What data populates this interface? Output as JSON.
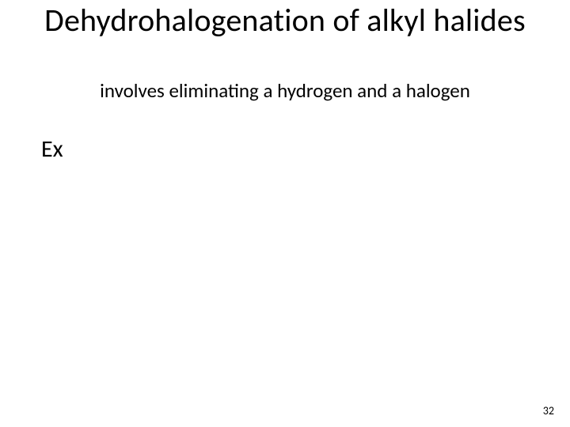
{
  "slide": {
    "title": "Dehydrohalogenation of alkyl halides",
    "subtitle": "involves eliminating a hydrogen and a halogen",
    "example_label": "Ex",
    "page_number": "32"
  },
  "style": {
    "background_color": "#ffffff",
    "text_color": "#000000",
    "title_fontsize": 40,
    "subtitle_fontsize": 25,
    "ex_fontsize": 30,
    "pagenum_fontsize": 14,
    "font_family": "Calibri"
  }
}
